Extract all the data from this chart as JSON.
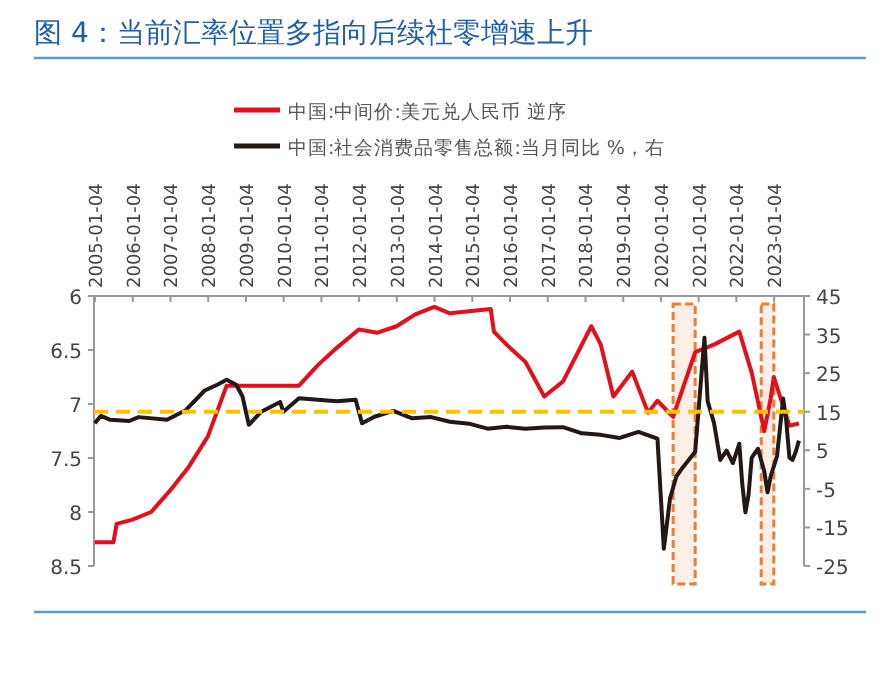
{
  "chart_data": {
    "type": "line",
    "title": "图 4：当前汇率位置多指向后续社零增速上升",
    "xlim": [
      "2004-12-25",
      "2023-10-20"
    ],
    "xticks": [
      "2005-01-04",
      "2006-01-04",
      "2007-01-04",
      "2008-01-04",
      "2009-01-04",
      "2010-01-04",
      "2011-01-04",
      "2012-01-04",
      "2013-01-04",
      "2014-01-04",
      "2015-01-04",
      "2016-01-04",
      "2017-01-04",
      "2018-01-04",
      "2019-01-04",
      "2020-01-04",
      "2021-01-04",
      "2022-01-04",
      "2023-01-04"
    ],
    "ylim": [
      8.5,
      6
    ],
    "yticks": [
      6,
      6.5,
      7,
      7.5,
      8,
      8.5
    ],
    "y2lim": [
      -25,
      45
    ],
    "y2ticks": [
      -25,
      -15,
      -5,
      5,
      15,
      25,
      35,
      45
    ],
    "legend": "top",
    "grid": false,
    "series": [
      {
        "name": "中国:中间价:美元兑人民币 逆序",
        "color": "#e3101b",
        "axis": "y",
        "x": [
          "2005-01",
          "2005-07",
          "2005-08",
          "2006-01",
          "2006-07",
          "2007-01",
          "2007-07",
          "2008-01",
          "2008-07",
          "2009-06",
          "2010-06",
          "2010-12",
          "2011-06",
          "2012-01",
          "2012-07",
          "2013-01",
          "2013-07",
          "2014-01",
          "2014-06",
          "2015-07",
          "2015-08",
          "2015-12",
          "2016-06",
          "2016-12",
          "2017-06",
          "2018-03",
          "2018-06",
          "2018-10",
          "2019-04",
          "2019-09",
          "2019-12",
          "2020-05",
          "2020-12",
          "2021-06",
          "2022-02",
          "2022-06",
          "2022-10",
          "2022-12",
          "2023-01",
          "2023-06",
          "2023-09"
        ],
        "values": [
          8.28,
          8.28,
          8.11,
          8.07,
          8.0,
          7.8,
          7.58,
          7.3,
          6.83,
          6.83,
          6.83,
          6.64,
          6.48,
          6.31,
          6.34,
          6.28,
          6.17,
          6.1,
          6.16,
          6.12,
          6.33,
          6.45,
          6.61,
          6.93,
          6.79,
          6.28,
          6.45,
          6.93,
          6.7,
          7.08,
          6.97,
          7.12,
          6.52,
          6.45,
          6.33,
          6.71,
          7.25,
          6.95,
          6.75,
          7.2,
          7.18
        ]
      },
      {
        "name": "中国:社会消费品零售总额:当月同比 %，右",
        "color": "#231815",
        "axis": "y2",
        "x": [
          "2005-01",
          "2005-03",
          "2005-06",
          "2005-12",
          "2006-03",
          "2006-12",
          "2007-06",
          "2007-12",
          "2008-04",
          "2008-07",
          "2008-10",
          "2008-12",
          "2009-02",
          "2009-06",
          "2009-12",
          "2010-01",
          "2010-06",
          "2011-06",
          "2011-12",
          "2012-02",
          "2012-06",
          "2012-12",
          "2013-06",
          "2013-12",
          "2014-06",
          "2014-12",
          "2015-06",
          "2015-12",
          "2016-06",
          "2016-12",
          "2017-06",
          "2017-12",
          "2018-06",
          "2018-12",
          "2019-06",
          "2019-12",
          "2020-02",
          "2020-04",
          "2020-06",
          "2020-08",
          "2020-12",
          "2021-03",
          "2021-04",
          "2021-06",
          "2021-08",
          "2021-10",
          "2021-12",
          "2022-02",
          "2022-03",
          "2022-04",
          "2022-05",
          "2022-06",
          "2022-08",
          "2022-10",
          "2022-11",
          "2022-12",
          "2023-02",
          "2023-03",
          "2023-04",
          "2023-05",
          "2023-06",
          "2023-07",
          "2023-08",
          "2023-09"
        ],
        "values": [
          12,
          13.9,
          12.9,
          12.6,
          13.6,
          12.9,
          15.4,
          20.5,
          22,
          23.3,
          22,
          19,
          11.6,
          15,
          17.5,
          15,
          18.5,
          17.7,
          18.1,
          12,
          13.7,
          15.2,
          13.3,
          13.6,
          12.4,
          11.9,
          10.6,
          11.1,
          10.6,
          10.9,
          11,
          9.4,
          9,
          8.2,
          9.8,
          8,
          -20.5,
          -7.5,
          -1.8,
          0.5,
          4.6,
          34.2,
          17.7,
          12.1,
          2.5,
          4.9,
          1.7,
          6.7,
          -3.5,
          -11.1,
          -6.7,
          3.1,
          5.4,
          -0.5,
          -5.9,
          -1.8,
          3.5,
          10.6,
          18.4,
          12.7,
          3.1,
          2.5,
          4.6,
          7.5
        ]
      }
    ],
    "ref_lines": [
      {
        "axis": "y2",
        "value": 15,
        "color": "#ffc000",
        "line_style": "dashed"
      }
    ],
    "bands": [
      {
        "axis": "x",
        "from": "2020-05",
        "to": "2020-12",
        "color": "#ed7d31"
      },
      {
        "axis": "x",
        "from": "2022-09",
        "to": "2023-01",
        "color": "#ed7d31"
      }
    ]
  }
}
